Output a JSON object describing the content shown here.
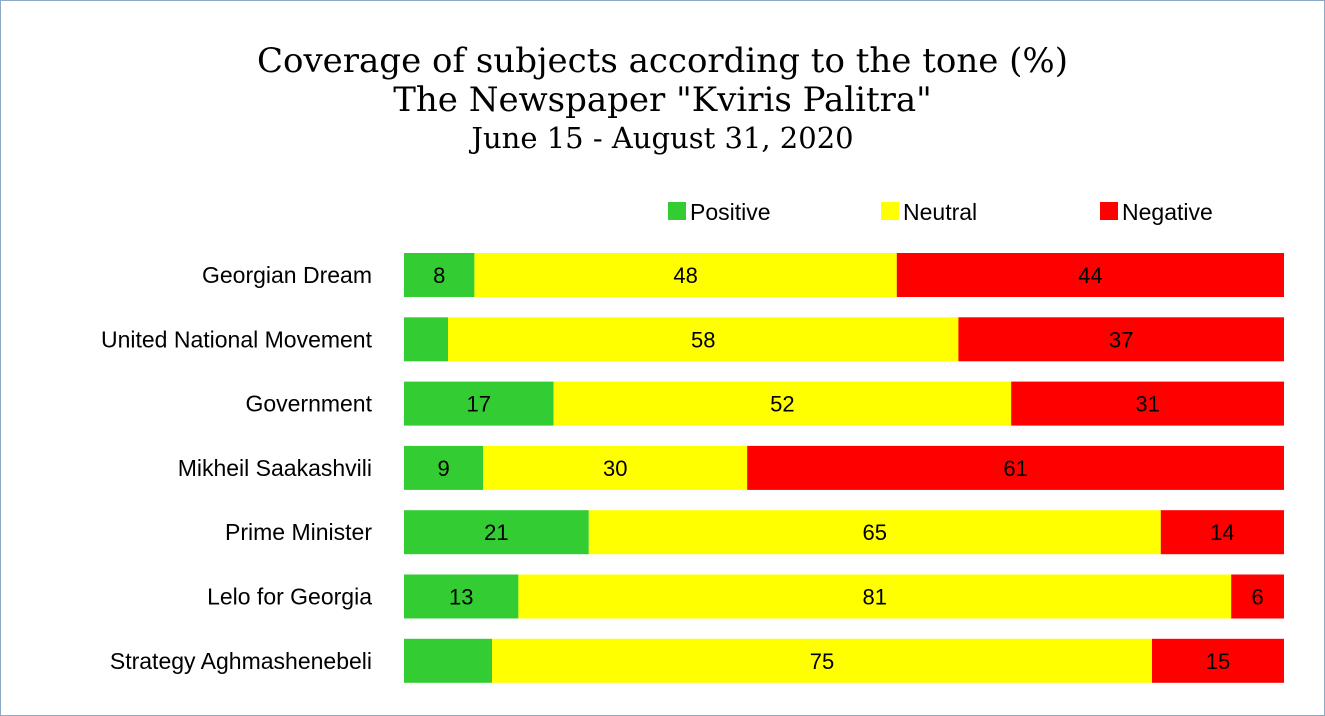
{
  "chart_data": {
    "type": "bar",
    "orientation": "horizontal",
    "stacked": true,
    "title": "Coverage of subjects according to the tone (%)",
    "subtitle": "The Newspaper \"Kviris Palitra\"",
    "period": "June 15 - August 31, 2020",
    "legend_position": "top",
    "grid": false,
    "categories": [
      "Georgian Dream",
      "United National Movement",
      "Government",
      "Mikheil Saakashvili",
      "Prime Minister",
      "Lelo for Georgia",
      "Strategy Aghmashenebeli"
    ],
    "series": [
      {
        "name": "Positive",
        "color": "#33cc33",
        "values": [
          8,
          5,
          17,
          9,
          21,
          13,
          10
        ]
      },
      {
        "name": "Neutral",
        "color": "#ffff00",
        "values": [
          48,
          58,
          52,
          30,
          65,
          81,
          75
        ]
      },
      {
        "name": "Negative",
        "color": "#ff0000",
        "values": [
          44,
          37,
          31,
          61,
          14,
          6,
          15
        ]
      }
    ],
    "data_labels": [
      [
        "8",
        "48",
        "44"
      ],
      [
        "",
        "58",
        "37"
      ],
      [
        "17",
        "52",
        "31"
      ],
      [
        "9",
        "30",
        "61"
      ],
      [
        "21",
        "65",
        "14"
      ],
      [
        "13",
        "81",
        "6"
      ],
      [
        "",
        "75",
        "15"
      ]
    ],
    "row_totals": [
      100,
      100,
      100,
      100,
      100,
      100,
      100
    ],
    "bar_scale_max": 100
  }
}
